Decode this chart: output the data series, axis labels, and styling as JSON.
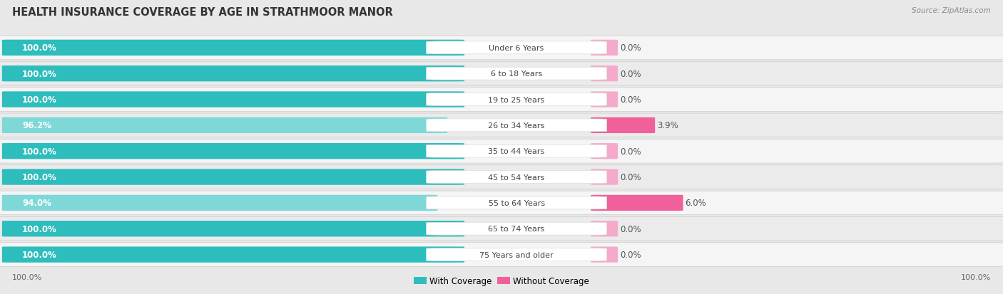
{
  "title": "HEALTH INSURANCE COVERAGE BY AGE IN STRATHMOOR MANOR",
  "source": "Source: ZipAtlas.com",
  "categories": [
    "Under 6 Years",
    "6 to 18 Years",
    "19 to 25 Years",
    "26 to 34 Years",
    "35 to 44 Years",
    "45 to 54 Years",
    "55 to 64 Years",
    "65 to 74 Years",
    "75 Years and older"
  ],
  "with_coverage": [
    100.0,
    100.0,
    100.0,
    96.2,
    100.0,
    100.0,
    94.0,
    100.0,
    100.0
  ],
  "without_coverage": [
    0.0,
    0.0,
    0.0,
    3.9,
    0.0,
    0.0,
    6.0,
    0.0,
    0.0
  ],
  "color_with_full": "#2EBDBD",
  "color_with_partial": "#7ED8D8",
  "color_without_hot": "#F0609A",
  "color_without_light": "#F5AACB",
  "bg_color": "#e8e8e8",
  "row_bg_even": "#f5f5f5",
  "row_bg_odd": "#ebebeb",
  "label_color_with": "#ffffff",
  "title_fontsize": 10.5,
  "bar_label_fontsize": 8.5,
  "category_fontsize": 8,
  "legend_fontsize": 8.5,
  "legend_with": "With Coverage",
  "legend_without": "Without Coverage",
  "x_left_label": "100.0%",
  "x_right_label": "100.0%"
}
